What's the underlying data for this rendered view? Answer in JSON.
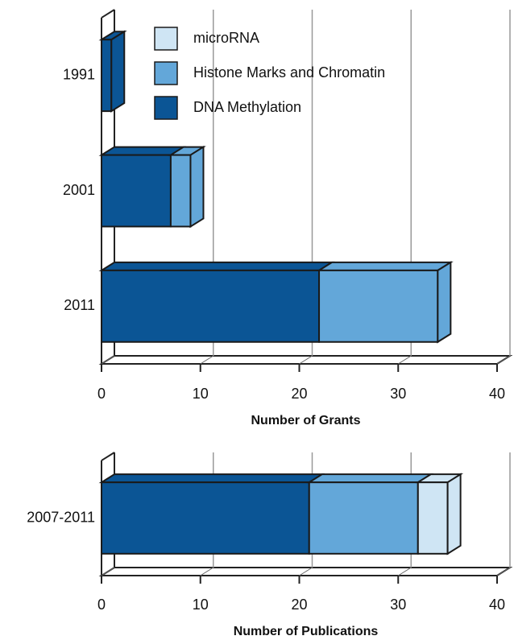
{
  "chart_data": [
    {
      "type": "bar",
      "orientation": "horizontal",
      "stacked": true,
      "three_d": true,
      "categories": [
        "1991",
        "2001",
        "2011"
      ],
      "series": [
        {
          "name": "DNA Methylation",
          "color": "#0b5595",
          "values": [
            1,
            7,
            22
          ]
        },
        {
          "name": "Histone Marks and Chromatin",
          "color": "#63a7d9",
          "values": [
            0,
            2,
            12
          ]
        },
        {
          "name": "microRNA",
          "color": "#cfe5f4",
          "values": [
            0,
            0,
            0
          ]
        }
      ],
      "xlabel": "Number of Grants",
      "xlim": [
        0,
        40
      ],
      "xticks": [
        0,
        10,
        20,
        30,
        40
      ],
      "grid": true,
      "legend": "upper left"
    },
    {
      "type": "bar",
      "orientation": "horizontal",
      "stacked": true,
      "three_d": true,
      "categories": [
        "2007-2011"
      ],
      "series": [
        {
          "color": "#0b5595",
          "values": [
            21
          ]
        },
        {
          "color": "#63a7d9",
          "values": [
            11
          ]
        },
        {
          "color": "#cfe5f4",
          "values": [
            3
          ]
        }
      ],
      "xlabel": "Number of Publications",
      "xlim": [
        0,
        40
      ],
      "xticks": [
        0,
        10,
        20,
        30,
        40
      ],
      "grid": true
    }
  ]
}
